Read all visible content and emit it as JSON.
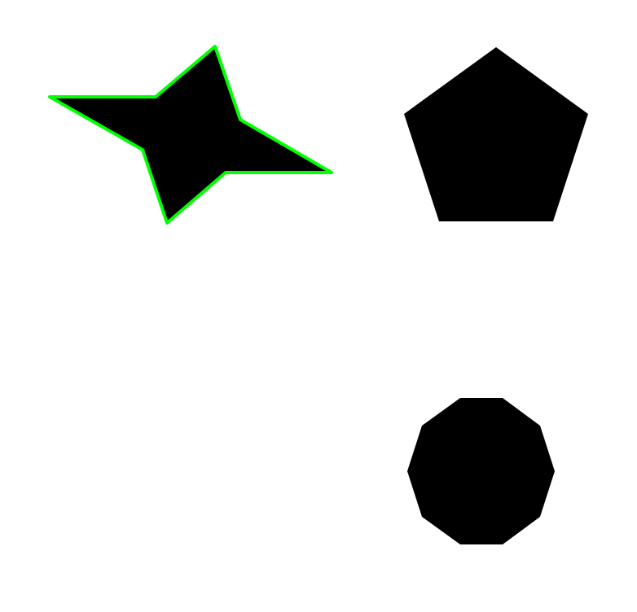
{
  "canvas": {
    "background": "#ffffff"
  },
  "shapes": [
    {
      "id": "star",
      "kind": "four-pointed-star",
      "fill": "#000000",
      "stroke": "#00ff00",
      "highlighted": true
    },
    {
      "id": "pentagon",
      "kind": "pentagon",
      "fill": "#000000",
      "stroke": "none",
      "highlighted": false
    },
    {
      "id": "decagon",
      "kind": "decagon",
      "fill": "#000000",
      "stroke": "none",
      "highlighted": false
    }
  ]
}
